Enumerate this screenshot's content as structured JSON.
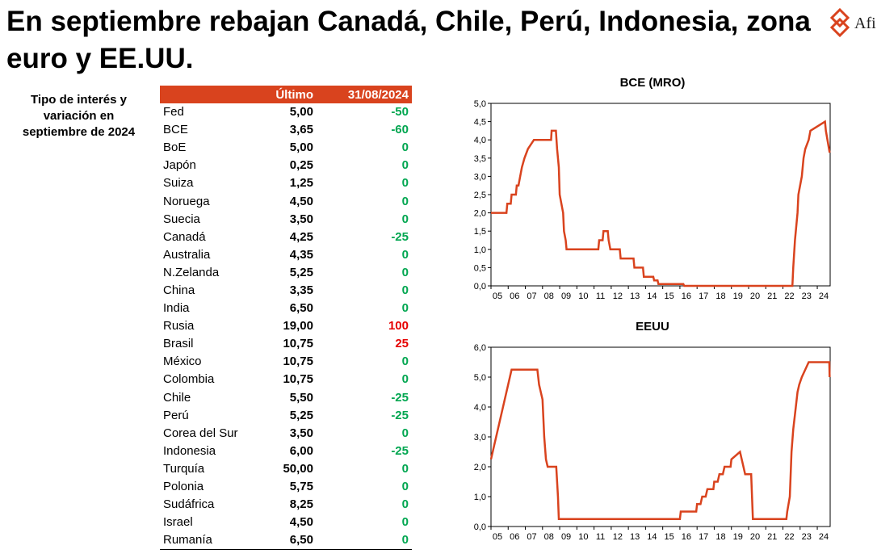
{
  "title": "En septiembre rebajan Canadá, Chile, Perú, Indonesia, zona euro y EE.UU.",
  "logo": {
    "text": "Afi",
    "icon": "afi-logo-icon",
    "color": "#d9431e"
  },
  "side_label": "Tipo de interés y variación en septiembre de 2024",
  "colors": {
    "accent": "#d9431e",
    "positive": "#00a650",
    "negative_red": "#e60000",
    "line": "#d9431e"
  },
  "table": {
    "headers": [
      "",
      "Último",
      "31/08/2024"
    ],
    "rows": [
      {
        "country": "Fed",
        "value": "5,00",
        "change": "-50",
        "color": "green"
      },
      {
        "country": "BCE",
        "value": "3,65",
        "change": "-60",
        "color": "green"
      },
      {
        "country": "BoE",
        "value": "5,00",
        "change": "0",
        "color": "green"
      },
      {
        "country": "Japón",
        "value": "0,25",
        "change": "0",
        "color": "green"
      },
      {
        "country": "Suiza",
        "value": "1,25",
        "change": "0",
        "color": "green"
      },
      {
        "country": "Noruega",
        "value": "4,50",
        "change": "0",
        "color": "green"
      },
      {
        "country": "Suecia",
        "value": "3,50",
        "change": "0",
        "color": "green"
      },
      {
        "country": "Canadá",
        "value": "4,25",
        "change": "-25",
        "color": "green"
      },
      {
        "country": "Australia",
        "value": "4,35",
        "change": "0",
        "color": "green"
      },
      {
        "country": "N.Zelanda",
        "value": "5,25",
        "change": "0",
        "color": "green"
      },
      {
        "country": "China",
        "value": "3,35",
        "change": "0",
        "color": "green"
      },
      {
        "country": "India",
        "value": "6,50",
        "change": "0",
        "color": "green"
      },
      {
        "country": "Rusia",
        "value": "19,00",
        "change": "100",
        "color": "red"
      },
      {
        "country": "Brasil",
        "value": "10,75",
        "change": "25",
        "color": "red"
      },
      {
        "country": "México",
        "value": "10,75",
        "change": "0",
        "color": "green"
      },
      {
        "country": "Colombia",
        "value": "10,75",
        "change": "0",
        "color": "green"
      },
      {
        "country": "Chile",
        "value": "5,50",
        "change": "-25",
        "color": "green"
      },
      {
        "country": "Perú",
        "value": "5,25",
        "change": "-25",
        "color": "green"
      },
      {
        "country": "Corea del Sur",
        "value": "3,50",
        "change": "0",
        "color": "green"
      },
      {
        "country": "Indonesia",
        "value": "6,00",
        "change": "-25",
        "color": "green"
      },
      {
        "country": "Turquía",
        "value": "50,00",
        "change": "0",
        "color": "green"
      },
      {
        "country": "Polonia",
        "value": "5,75",
        "change": "0",
        "color": "green"
      },
      {
        "country": "Sudáfrica",
        "value": "8,25",
        "change": "0",
        "color": "green"
      },
      {
        "country": "Israel",
        "value": "4,50",
        "change": "0",
        "color": "green"
      },
      {
        "country": "Rumanía",
        "value": "6,50",
        "change": "0",
        "color": "green"
      }
    ]
  },
  "chart_data": [
    {
      "type": "line",
      "title": "BCE (MRO)",
      "xlabel": "",
      "ylabel": "",
      "x_tick_labels": [
        "05",
        "06",
        "07",
        "08",
        "09",
        "10",
        "11",
        "12",
        "13",
        "14",
        "15",
        "16",
        "17",
        "18",
        "19",
        "20",
        "21",
        "22",
        "23",
        "24"
      ],
      "y_tick_labels": [
        "0,0",
        "0,5",
        "1,0",
        "1,5",
        "2,0",
        "2,5",
        "3,0",
        "3,5",
        "4,0",
        "4,5",
        "5,0"
      ],
      "xlim": [
        2005,
        2024.75
      ],
      "ylim": [
        0,
        5
      ],
      "grid": false,
      "series": [
        {
          "x": [
            2005.0,
            2005.9,
            2005.95,
            2006.15,
            2006.2,
            2006.45,
            2006.5,
            2006.6,
            2006.7,
            2006.8,
            2006.95,
            2007.15,
            2007.5,
            2008.5,
            2008.53,
            2008.78,
            2008.85,
            2008.95,
            2009.0,
            2009.2,
            2009.25,
            2009.35,
            2009.4,
            2011.25,
            2011.3,
            2011.5,
            2011.55,
            2011.8,
            2011.85,
            2011.95,
            2012.5,
            2012.55,
            2013.3,
            2013.35,
            2013.85,
            2013.9,
            2014.45,
            2014.5,
            2014.7,
            2014.75,
            2016.2,
            2016.25,
            2022.55,
            2022.6,
            2022.7,
            2022.85,
            2022.9,
            2023.1,
            2023.2,
            2023.3,
            2023.5,
            2023.6,
            2024.45,
            2024.5,
            2024.72
          ],
          "y": [
            2.0,
            2.0,
            2.25,
            2.25,
            2.5,
            2.5,
            2.75,
            2.75,
            3.0,
            3.25,
            3.5,
            3.75,
            4.0,
            4.0,
            4.25,
            4.25,
            3.75,
            3.25,
            2.5,
            2.0,
            1.5,
            1.25,
            1.0,
            1.0,
            1.25,
            1.25,
            1.5,
            1.5,
            1.25,
            1.0,
            1.0,
            0.75,
            0.75,
            0.5,
            0.5,
            0.25,
            0.25,
            0.15,
            0.15,
            0.05,
            0.05,
            0.0,
            0.0,
            0.5,
            1.25,
            2.0,
            2.5,
            3.0,
            3.5,
            3.75,
            4.0,
            4.25,
            4.5,
            4.25,
            3.65
          ]
        }
      ]
    },
    {
      "type": "line",
      "title": "EEUU",
      "xlabel": "",
      "ylabel": "",
      "x_tick_labels": [
        "05",
        "06",
        "07",
        "08",
        "09",
        "10",
        "11",
        "12",
        "13",
        "14",
        "15",
        "16",
        "17",
        "18",
        "19",
        "20",
        "21",
        "22",
        "23",
        "24"
      ],
      "y_tick_labels": [
        "0,0",
        "1,0",
        "2,0",
        "3,0",
        "4,0",
        "5,0",
        "6,0"
      ],
      "xlim": [
        2005,
        2024.75
      ],
      "ylim": [
        0,
        6
      ],
      "grid": false,
      "series": [
        {
          "x": [
            2005.0,
            2005.1,
            2005.2,
            2005.3,
            2005.4,
            2005.5,
            2005.6,
            2005.7,
            2005.8,
            2005.9,
            2006.0,
            2006.1,
            2006.2,
            2006.3,
            2006.4,
            2006.5,
            2006.6,
            2007.7,
            2007.8,
            2007.9,
            2008.0,
            2008.1,
            2008.2,
            2008.3,
            2008.8,
            2008.9,
            2008.95,
            2016.0,
            2016.05,
            2016.95,
            2017.0,
            2017.2,
            2017.3,
            2017.5,
            2017.6,
            2017.95,
            2018.0,
            2018.2,
            2018.3,
            2018.5,
            2018.6,
            2018.95,
            2019.0,
            2019.5,
            2019.6,
            2019.7,
            2019.8,
            2020.15,
            2020.2,
            2020.25,
            2022.2,
            2022.25,
            2022.4,
            2022.45,
            2022.5,
            2022.6,
            2022.75,
            2022.85,
            2022.95,
            2023.1,
            2023.3,
            2023.5,
            2023.6,
            2024.7,
            2024.72
          ],
          "y": [
            2.25,
            2.5,
            2.75,
            3.0,
            3.25,
            3.5,
            3.75,
            4.0,
            4.25,
            4.5,
            4.75,
            5.0,
            5.25,
            5.25,
            5.25,
            5.25,
            5.25,
            5.25,
            4.75,
            4.5,
            4.25,
            3.0,
            2.25,
            2.0,
            2.0,
            1.0,
            0.25,
            0.25,
            0.5,
            0.5,
            0.75,
            0.75,
            1.0,
            1.0,
            1.25,
            1.25,
            1.5,
            1.5,
            1.75,
            1.75,
            2.0,
            2.0,
            2.25,
            2.5,
            2.25,
            2.0,
            1.75,
            1.75,
            1.0,
            0.25,
            0.25,
            0.5,
            1.0,
            1.75,
            2.5,
            3.25,
            4.0,
            4.5,
            4.75,
            5.0,
            5.25,
            5.5,
            5.5,
            5.5,
            5.0
          ]
        }
      ]
    }
  ]
}
